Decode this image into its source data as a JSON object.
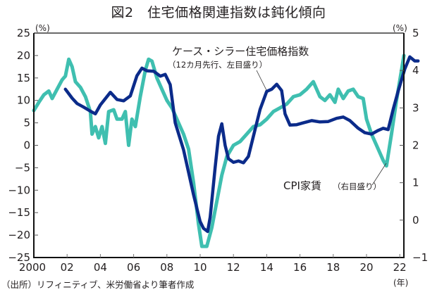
{
  "chart_data": {
    "type": "line",
    "title": "図2　住宅価格関連指数は鈍化傾向",
    "xlabel": "",
    "x_unit": "(年)",
    "ylabel_left": "(%)",
    "ylabel_right": "(%)",
    "ylim_left": [
      -25,
      25
    ],
    "ylim_right": [
      -1,
      5
    ],
    "xlim": [
      2000,
      2023.2
    ],
    "x_ticks": [
      2000,
      2002,
      2004,
      2006,
      2008,
      2010,
      2012,
      2014,
      2016,
      2018,
      2020,
      2022
    ],
    "x_tick_labels": [
      "2000",
      "02",
      "04",
      "06",
      "08",
      "10",
      "12",
      "14",
      "16",
      "18",
      "20",
      "22"
    ],
    "y_ticks_left": [
      25,
      20,
      15,
      10,
      5,
      0,
      -5,
      -10,
      -15,
      -20,
      -25
    ],
    "y_tick_labels_left": [
      "25",
      "20",
      "15",
      "10",
      "5",
      "0",
      "−5",
      "−10",
      "−15",
      "−20",
      "−25"
    ],
    "y_ticks_right": [
      5,
      4,
      3,
      2,
      1,
      0,
      -1
    ],
    "y_tick_labels_right": [
      "5",
      "4",
      "3",
      "2",
      "1",
      "0",
      "−1"
    ],
    "grid": false,
    "legend_position": "inline annotations",
    "series": [
      {
        "name": "ケース・シラー住宅価格指数",
        "note": "（12カ月先行、左目盛り）",
        "axis": "left",
        "color": "#0b2b8a",
        "points": [
          [
            2001.9,
            12.5
          ],
          [
            2002.3,
            10.5
          ],
          [
            2002.6,
            9.3
          ],
          [
            2003.0,
            8.5
          ],
          [
            2003.4,
            7.6
          ],
          [
            2003.7,
            7.0
          ],
          [
            2004.0,
            9.0
          ],
          [
            2004.6,
            11.8
          ],
          [
            2005.0,
            10.2
          ],
          [
            2005.4,
            9.9
          ],
          [
            2005.8,
            11.0
          ],
          [
            2006.2,
            15.5
          ],
          [
            2006.5,
            17.2
          ],
          [
            2006.8,
            16.6
          ],
          [
            2007.2,
            16.5
          ],
          [
            2007.6,
            15.4
          ],
          [
            2007.9,
            15.8
          ],
          [
            2008.2,
            13.5
          ],
          [
            2008.5,
            5.0
          ],
          [
            2009.0,
            -1.0
          ],
          [
            2009.3,
            -6.0
          ],
          [
            2009.6,
            -11.0
          ],
          [
            2009.9,
            -15.5
          ],
          [
            2010.0,
            -17.0
          ],
          [
            2010.2,
            -18.5
          ],
          [
            2010.45,
            -19.2
          ],
          [
            2010.6,
            -16.0
          ],
          [
            2010.9,
            -5.0
          ],
          [
            2011.1,
            2.0
          ],
          [
            2011.3,
            4.8
          ],
          [
            2011.5,
            0.0
          ],
          [
            2011.7,
            -3.0
          ],
          [
            2012.0,
            -3.8
          ],
          [
            2012.3,
            -3.5
          ],
          [
            2012.6,
            -3.9
          ],
          [
            2012.9,
            -2.5
          ],
          [
            2013.2,
            2.0
          ],
          [
            2013.6,
            8.0
          ],
          [
            2014.0,
            12.0
          ],
          [
            2014.3,
            12.5
          ],
          [
            2014.6,
            13.6
          ],
          [
            2014.9,
            12.2
          ],
          [
            2015.1,
            7.0
          ],
          [
            2015.4,
            4.5
          ],
          [
            2015.8,
            4.6
          ],
          [
            2016.2,
            5.0
          ],
          [
            2016.7,
            5.5
          ],
          [
            2017.2,
            5.2
          ],
          [
            2017.7,
            5.3
          ],
          [
            2018.2,
            6.0
          ],
          [
            2018.6,
            6.3
          ],
          [
            2019.0,
            5.5
          ],
          [
            2019.5,
            3.8
          ],
          [
            2019.9,
            2.8
          ],
          [
            2020.3,
            2.5
          ],
          [
            2020.7,
            3.3
          ],
          [
            2021.0,
            3.8
          ],
          [
            2021.3,
            3.5
          ],
          [
            2021.6,
            8.0
          ],
          [
            2021.9,
            12.0
          ],
          [
            2022.3,
            17.0
          ],
          [
            2022.6,
            19.7
          ],
          [
            2022.9,
            18.8
          ],
          [
            2023.1,
            18.8
          ]
        ]
      },
      {
        "name": "CPI家賃",
        "note": "（右目盛り）",
        "axis": "right",
        "color": "#3fbfb0",
        "points": [
          [
            2000.0,
            2.93
          ],
          [
            2000.3,
            3.15
          ],
          [
            2000.6,
            3.35
          ],
          [
            2000.9,
            3.45
          ],
          [
            2001.1,
            3.25
          ],
          [
            2001.4,
            3.5
          ],
          [
            2001.7,
            3.75
          ],
          [
            2001.9,
            3.85
          ],
          [
            2002.1,
            4.3
          ],
          [
            2002.3,
            4.1
          ],
          [
            2002.5,
            3.7
          ],
          [
            2002.8,
            3.55
          ],
          [
            2003.1,
            3.3
          ],
          [
            2003.4,
            2.9
          ],
          [
            2003.5,
            2.3
          ],
          [
            2003.7,
            2.5
          ],
          [
            2003.9,
            2.2
          ],
          [
            2004.1,
            2.5
          ],
          [
            2004.3,
            2.05
          ],
          [
            2004.5,
            2.9
          ],
          [
            2004.8,
            2.95
          ],
          [
            2005.0,
            2.7
          ],
          [
            2005.3,
            2.7
          ],
          [
            2005.5,
            2.9
          ],
          [
            2005.7,
            2.0
          ],
          [
            2005.9,
            2.7
          ],
          [
            2006.1,
            2.5
          ],
          [
            2006.4,
            3.3
          ],
          [
            2006.7,
            4.0
          ],
          [
            2006.9,
            4.3
          ],
          [
            2007.1,
            4.25
          ],
          [
            2007.4,
            3.8
          ],
          [
            2007.7,
            3.5
          ],
          [
            2008.0,
            3.2
          ],
          [
            2008.3,
            3.0
          ],
          [
            2008.7,
            2.6
          ],
          [
            2009.0,
            2.3
          ],
          [
            2009.3,
            1.9
          ],
          [
            2009.6,
            1.0
          ],
          [
            2009.9,
            -0.1
          ],
          [
            2010.1,
            -0.7
          ],
          [
            2010.4,
            -0.7
          ],
          [
            2010.7,
            -0.2
          ],
          [
            2011.0,
            0.5
          ],
          [
            2011.3,
            1.2
          ],
          [
            2011.6,
            1.7
          ],
          [
            2012.0,
            2.0
          ],
          [
            2012.4,
            2.1
          ],
          [
            2012.8,
            2.3
          ],
          [
            2013.2,
            2.5
          ],
          [
            2013.6,
            2.55
          ],
          [
            2014.0,
            2.7
          ],
          [
            2014.4,
            2.9
          ],
          [
            2014.8,
            3.0
          ],
          [
            2015.2,
            3.1
          ],
          [
            2015.6,
            3.3
          ],
          [
            2016.0,
            3.35
          ],
          [
            2016.4,
            3.5
          ],
          [
            2016.8,
            3.7
          ],
          [
            2017.2,
            3.3
          ],
          [
            2017.5,
            3.2
          ],
          [
            2017.8,
            3.35
          ],
          [
            2018.1,
            3.15
          ],
          [
            2018.3,
            3.5
          ],
          [
            2018.6,
            3.25
          ],
          [
            2018.9,
            3.45
          ],
          [
            2019.2,
            3.5
          ],
          [
            2019.5,
            3.3
          ],
          [
            2019.8,
            3.25
          ],
          [
            2020.0,
            2.7
          ],
          [
            2020.3,
            2.3
          ],
          [
            2020.6,
            2.0
          ],
          [
            2021.0,
            1.6
          ],
          [
            2021.2,
            1.45
          ],
          [
            2021.5,
            2.3
          ],
          [
            2021.8,
            3.2
          ],
          [
            2022.1,
            4.0
          ],
          [
            2022.25,
            4.4
          ]
        ]
      }
    ],
    "annotations": [
      {
        "text": "ケース・シラー住宅価格指数",
        "sub": "（12カ月先行、左目盛り）",
        "series": 0
      },
      {
        "text": "CPI家賃",
        "sub": "（右目盛り）",
        "series": 1
      }
    ],
    "source": "（出所）リフィニティブ、米労働省より筆者作成"
  }
}
